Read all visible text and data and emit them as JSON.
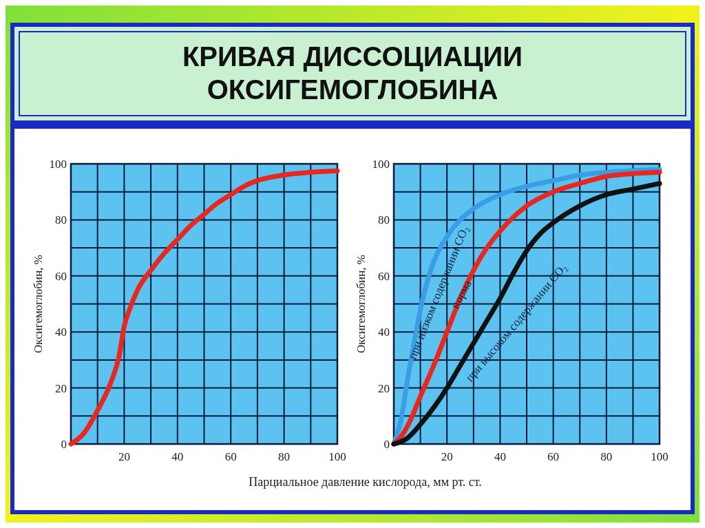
{
  "chart_data": [
    {
      "type": "line",
      "title": "КРИВАЯ ДИССОЦИАЦИИ ОКСИГЕМОГЛОБИНА",
      "xlabel": "Парциальное давление кислорода, мм рт. ст.",
      "ylabel": "Оксигемоглобин, %",
      "xlim": [
        0,
        100
      ],
      "ylim": [
        0,
        100
      ],
      "xticks": [
        {
          "value": 0,
          "label": null
        },
        {
          "value": 10,
          "label": null
        },
        20,
        {
          "value": 30,
          "label": null
        },
        40,
        {
          "value": 50,
          "label": null
        },
        60,
        {
          "value": 70,
          "label": null
        },
        80,
        {
          "value": 90,
          "label": null
        },
        100
      ],
      "yticks": [
        0,
        {
          "value": 10,
          "label": null
        },
        20,
        {
          "value": 30,
          "label": null
        },
        40,
        {
          "value": 50,
          "label": null
        },
        60,
        {
          "value": 70,
          "label": null
        },
        80,
        {
          "value": 90,
          "label": null
        },
        100
      ],
      "grid": true,
      "marker": "none",
      "line_style": "solid",
      "series": [
        {
          "color": "#e8281e",
          "x": [
            0,
            5,
            10,
            15,
            18,
            20,
            22,
            25,
            30,
            35,
            40,
            45,
            50,
            55,
            60,
            65,
            70,
            80,
            90,
            100
          ],
          "values": [
            0,
            4,
            12,
            22,
            31,
            42,
            48,
            55,
            62,
            68,
            73,
            78,
            82,
            86,
            89,
            92,
            94,
            96,
            97,
            97.5
          ]
        }
      ]
    },
    {
      "type": "line",
      "ylabel": "Оксигемоглобин, %",
      "xlim": [
        0,
        100
      ],
      "ylim": [
        0,
        100
      ],
      "xticks": [
        {
          "value": 0,
          "label": null
        },
        {
          "value": 10,
          "label": null
        },
        20,
        {
          "value": 30,
          "label": null
        },
        40,
        {
          "value": 50,
          "label": null
        },
        60,
        {
          "value": 70,
          "label": null
        },
        80,
        {
          "value": 90,
          "label": null
        },
        100
      ],
      "yticks": [
        0,
        {
          "value": 10,
          "label": null
        },
        20,
        {
          "value": 30,
          "label": null
        },
        40,
        {
          "value": 50,
          "label": null
        },
        60,
        {
          "value": 70,
          "label": null
        },
        80,
        {
          "value": 90,
          "label": null
        },
        100
      ],
      "grid": true,
      "marker": "none",
      "line_style": "solid",
      "series": [
        {
          "name": "при низком содержании CO₂",
          "color": "#3a9ee6",
          "x": [
            0,
            3,
            5,
            8,
            10,
            12,
            15,
            20,
            25,
            30,
            40,
            50,
            60,
            70,
            80,
            100
          ],
          "values": [
            0,
            10,
            22,
            38,
            48,
            56,
            65,
            74,
            80,
            84,
            89,
            92,
            94,
            96,
            97,
            98
          ]
        },
        {
          "name": "норма",
          "color": "#e8281e",
          "x": [
            0,
            3,
            6,
            10,
            15,
            20,
            25,
            30,
            35,
            40,
            45,
            50,
            60,
            70,
            80,
            90,
            100
          ],
          "values": [
            0,
            3,
            8,
            17,
            28,
            40,
            52,
            62,
            70,
            76,
            81,
            85,
            90,
            93,
            95.5,
            96.5,
            97
          ]
        },
        {
          "name": "при высоком содержании CO₂",
          "color": "#111111",
          "x": [
            0,
            5,
            10,
            15,
            20,
            25,
            30,
            35,
            40,
            45,
            50,
            55,
            60,
            70,
            80,
            90,
            100
          ],
          "values": [
            0,
            2,
            7,
            13,
            20,
            28,
            36,
            44,
            52,
            61,
            69,
            75,
            79,
            85,
            89,
            91,
            93
          ]
        }
      ]
    }
  ]
}
